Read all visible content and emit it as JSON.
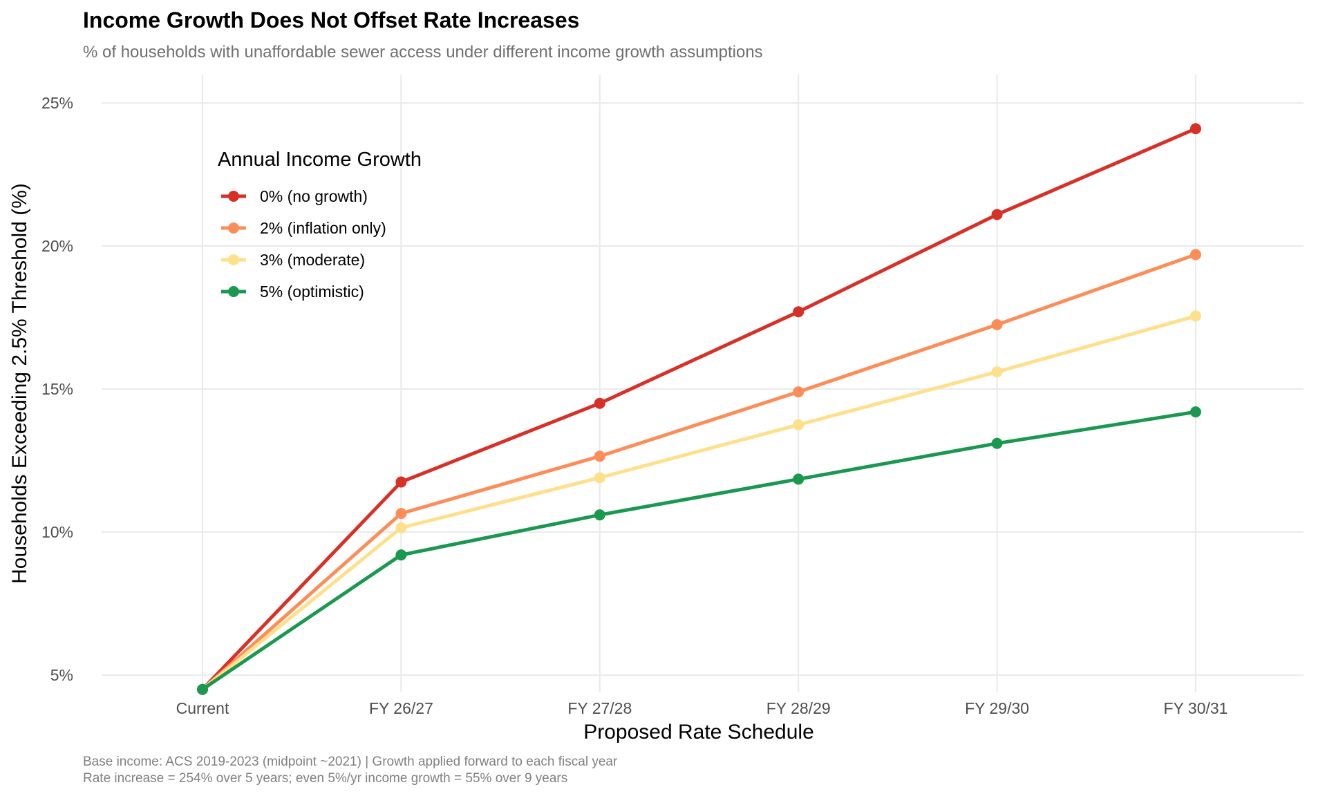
{
  "chart_data": {
    "type": "line",
    "title": "Income Growth Does Not Offset Rate Increases",
    "subtitle": "% of households with unaffordable sewer access under different income growth assumptions",
    "xlabel": "Proposed Rate Schedule",
    "ylabel": "Households Exceeding 2.5% Threshold (%)",
    "categories": [
      "Current",
      "FY 26/27",
      "FY 27/28",
      "FY 28/29",
      "FY 29/30",
      "FY 30/31"
    ],
    "yticks": [
      5,
      10,
      15,
      20,
      25
    ],
    "ytick_labels": [
      "5%",
      "10%",
      "15%",
      "20%",
      "25%"
    ],
    "ylim": [
      4.3,
      26.1
    ],
    "grid": true,
    "legend": {
      "title": "Annual Income Growth",
      "placement": "top-left"
    },
    "series": [
      {
        "name": "0% (no growth)",
        "color": "#d73027",
        "values": [
          4.5,
          11.75,
          14.5,
          17.7,
          21.1,
          24.1
        ]
      },
      {
        "name": "2% (inflation only)",
        "color": "#fc8d59",
        "values": [
          4.5,
          10.65,
          12.65,
          14.9,
          17.25,
          19.7
        ]
      },
      {
        "name": "3% (moderate)",
        "color": "#fee08b",
        "values": [
          4.5,
          10.15,
          11.9,
          13.75,
          15.6,
          17.55
        ]
      },
      {
        "name": "5% (optimistic)",
        "color": "#1a9850",
        "values": [
          4.5,
          9.2,
          10.6,
          11.85,
          13.1,
          14.2
        ]
      }
    ],
    "caption": [
      "Base income: ACS 2019-2023 (midpoint ~2021) | Growth applied forward to each fiscal year",
      "Rate increase = 254% over 5 years; even 5%/yr income growth = 55% over 9 years"
    ]
  }
}
